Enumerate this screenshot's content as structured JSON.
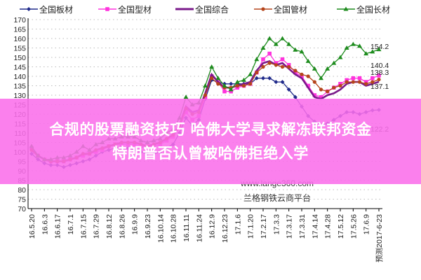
{
  "chart_data": {
    "type": "line",
    "ylim": [
      70,
      170
    ],
    "yticks": [
      70,
      75,
      80,
      85,
      90,
      95,
      100,
      105,
      110,
      115,
      120,
      125,
      130,
      135,
      140,
      145,
      150,
      155,
      160,
      165,
      170
    ],
    "grid": "horizontal dotted",
    "legend_position": "top",
    "categories": [
      "16.5.20",
      "16.5.27",
      "16.6.3",
      "16.6.10",
      "16.6.17",
      "16.6.24",
      "16.7.1",
      "16.7.8",
      "16.7.15",
      "16.7.22",
      "16.7.29",
      "16.8.5",
      "16.8.12",
      "16.8.19",
      "16.8.26",
      "16.9.2",
      "16.9.9",
      "16.9.16",
      "16.9.23",
      "16.9.30",
      "16.10.14",
      "16.10.21",
      "16.10.28",
      "16.11.4",
      "16.11.11",
      "16.11.18",
      "16.11.24",
      "16.12.2",
      "16.12.9",
      "16.12.16",
      "16.12.23",
      "16.12.30",
      "17.1.6",
      "17.1.13",
      "17.1.20",
      "17.2.10",
      "17.2.17",
      "17.2.24",
      "17.3.3",
      "17.3.10",
      "17.3.17",
      "17.3.24",
      "17.3.31",
      "17.4.7",
      "17.4.14",
      "17.4.21",
      "17.4.28",
      "17.5.5",
      "17.5.12",
      "17.5.19",
      "17.5.26",
      "17.6.2",
      "17.6.9",
      "17.6.16",
      "预测2017-6-23"
    ],
    "tick_labels": [
      "16.5.20",
      "16.6.3",
      "16.6.17",
      "16.7.1",
      "16.7.15",
      "16.7.29",
      "16.8.12",
      "16.8.26",
      "16.9.9",
      "16.9.23",
      "16.10.14",
      "16.10.28",
      "16.11.11",
      "16.11.24",
      "16.12.9",
      "16.12.23",
      "17.1.6",
      "17.1.20",
      "17.2.17",
      "17.3.3",
      "17.3.17",
      "17.3.31",
      "17.4.14",
      "17.4.28",
      "17.5.12",
      "17.5.26",
      "17.6.9",
      "预测2017-6-23"
    ],
    "series": [
      {
        "name": "全国板材",
        "color": "#1f2a8a",
        "marker": "diamond",
        "end_label": "122.2",
        "values": [
          99,
          96,
          94,
          93,
          93,
          92,
          93,
          94,
          95,
          96,
          98,
          100,
          101,
          102,
          102,
          102,
          101,
          100,
          99,
          99,
          100,
          102,
          104,
          110,
          118,
          114,
          117,
          128,
          138,
          137,
          136,
          136,
          136,
          136,
          136,
          139,
          139,
          139,
          137,
          137,
          133,
          129,
          124,
          119,
          116,
          114,
          115,
          117,
          119,
          121,
          121,
          120,
          121,
          122,
          122.2
        ]
      },
      {
        "name": "全国型材",
        "color": "#ff33dd",
        "marker": "square",
        "end_label": "140.4",
        "values": [
          102,
          98,
          96,
          95,
          95,
          95,
          96,
          97,
          98,
          99,
          100,
          101,
          103,
          104,
          104,
          104,
          104,
          103,
          102,
          103,
          104,
          106,
          108,
          113,
          121,
          117,
          119,
          129,
          140,
          137,
          132,
          132,
          134,
          135,
          136,
          142,
          149,
          152,
          147,
          149,
          146,
          142,
          140,
          135,
          130,
          129,
          132,
          134,
          136,
          138,
          139,
          139,
          137,
          139,
          140.4
        ]
      },
      {
        "name": "全国综合",
        "color": "#7a1a8a",
        "marker": "none",
        "end_label": "137.1",
        "values": [
          101,
          98,
          96,
          95,
          95,
          95,
          96,
          97,
          99,
          99,
          101,
          102,
          103,
          104,
          105,
          105,
          105,
          104,
          103,
          104,
          105,
          107,
          109,
          114,
          124,
          121,
          122,
          131,
          141,
          137,
          134,
          134,
          135,
          136,
          137,
          143,
          147,
          148,
          146,
          147,
          144,
          141,
          139,
          134,
          129,
          128,
          130,
          131,
          133,
          136,
          137,
          137,
          135,
          136,
          137.1
        ]
      },
      {
        "name": "全国管材",
        "color": "#b5451b",
        "marker": "circle",
        "end_label": "138.3",
        "values": [
          101,
          98,
          96,
          95,
          95,
          95,
          96,
          97,
          99,
          99,
          101,
          102,
          103,
          104,
          105,
          105,
          105,
          104,
          103,
          104,
          105,
          107,
          109,
          114,
          123,
          120,
          121,
          130,
          139,
          136,
          134,
          134,
          135,
          135,
          136,
          142,
          145,
          147,
          146,
          145,
          145,
          143,
          141,
          140,
          137,
          133,
          132,
          134,
          135,
          137,
          137,
          137,
          136,
          137,
          138.3
        ]
      },
      {
        "name": "全国长材",
        "color": "#1e8c1e",
        "marker": "triangle",
        "end_label": "154.2",
        "values": [
          103,
          98,
          96,
          96,
          97,
          97,
          98,
          100,
          103,
          101,
          104,
          105,
          107,
          107,
          108,
          108,
          108,
          106,
          105,
          106,
          107,
          110,
          112,
          118,
          129,
          125,
          126,
          135,
          145,
          139,
          135,
          133,
          137,
          138,
          141,
          149,
          155,
          160,
          157,
          160,
          157,
          154,
          153,
          148,
          144,
          139,
          144,
          147,
          150,
          155,
          157,
          156,
          152,
          153,
          154.2
        ]
      }
    ]
  },
  "watermark": {
    "url": "www.lange360.com",
    "name": "兰格钢铁云商平台"
  },
  "banner": {
    "line1": "合规的股票融资技巧 哈佛大学寻求解冻联邦资金",
    "line2": "特朗普否认曾被哈佛拒绝入学"
  }
}
